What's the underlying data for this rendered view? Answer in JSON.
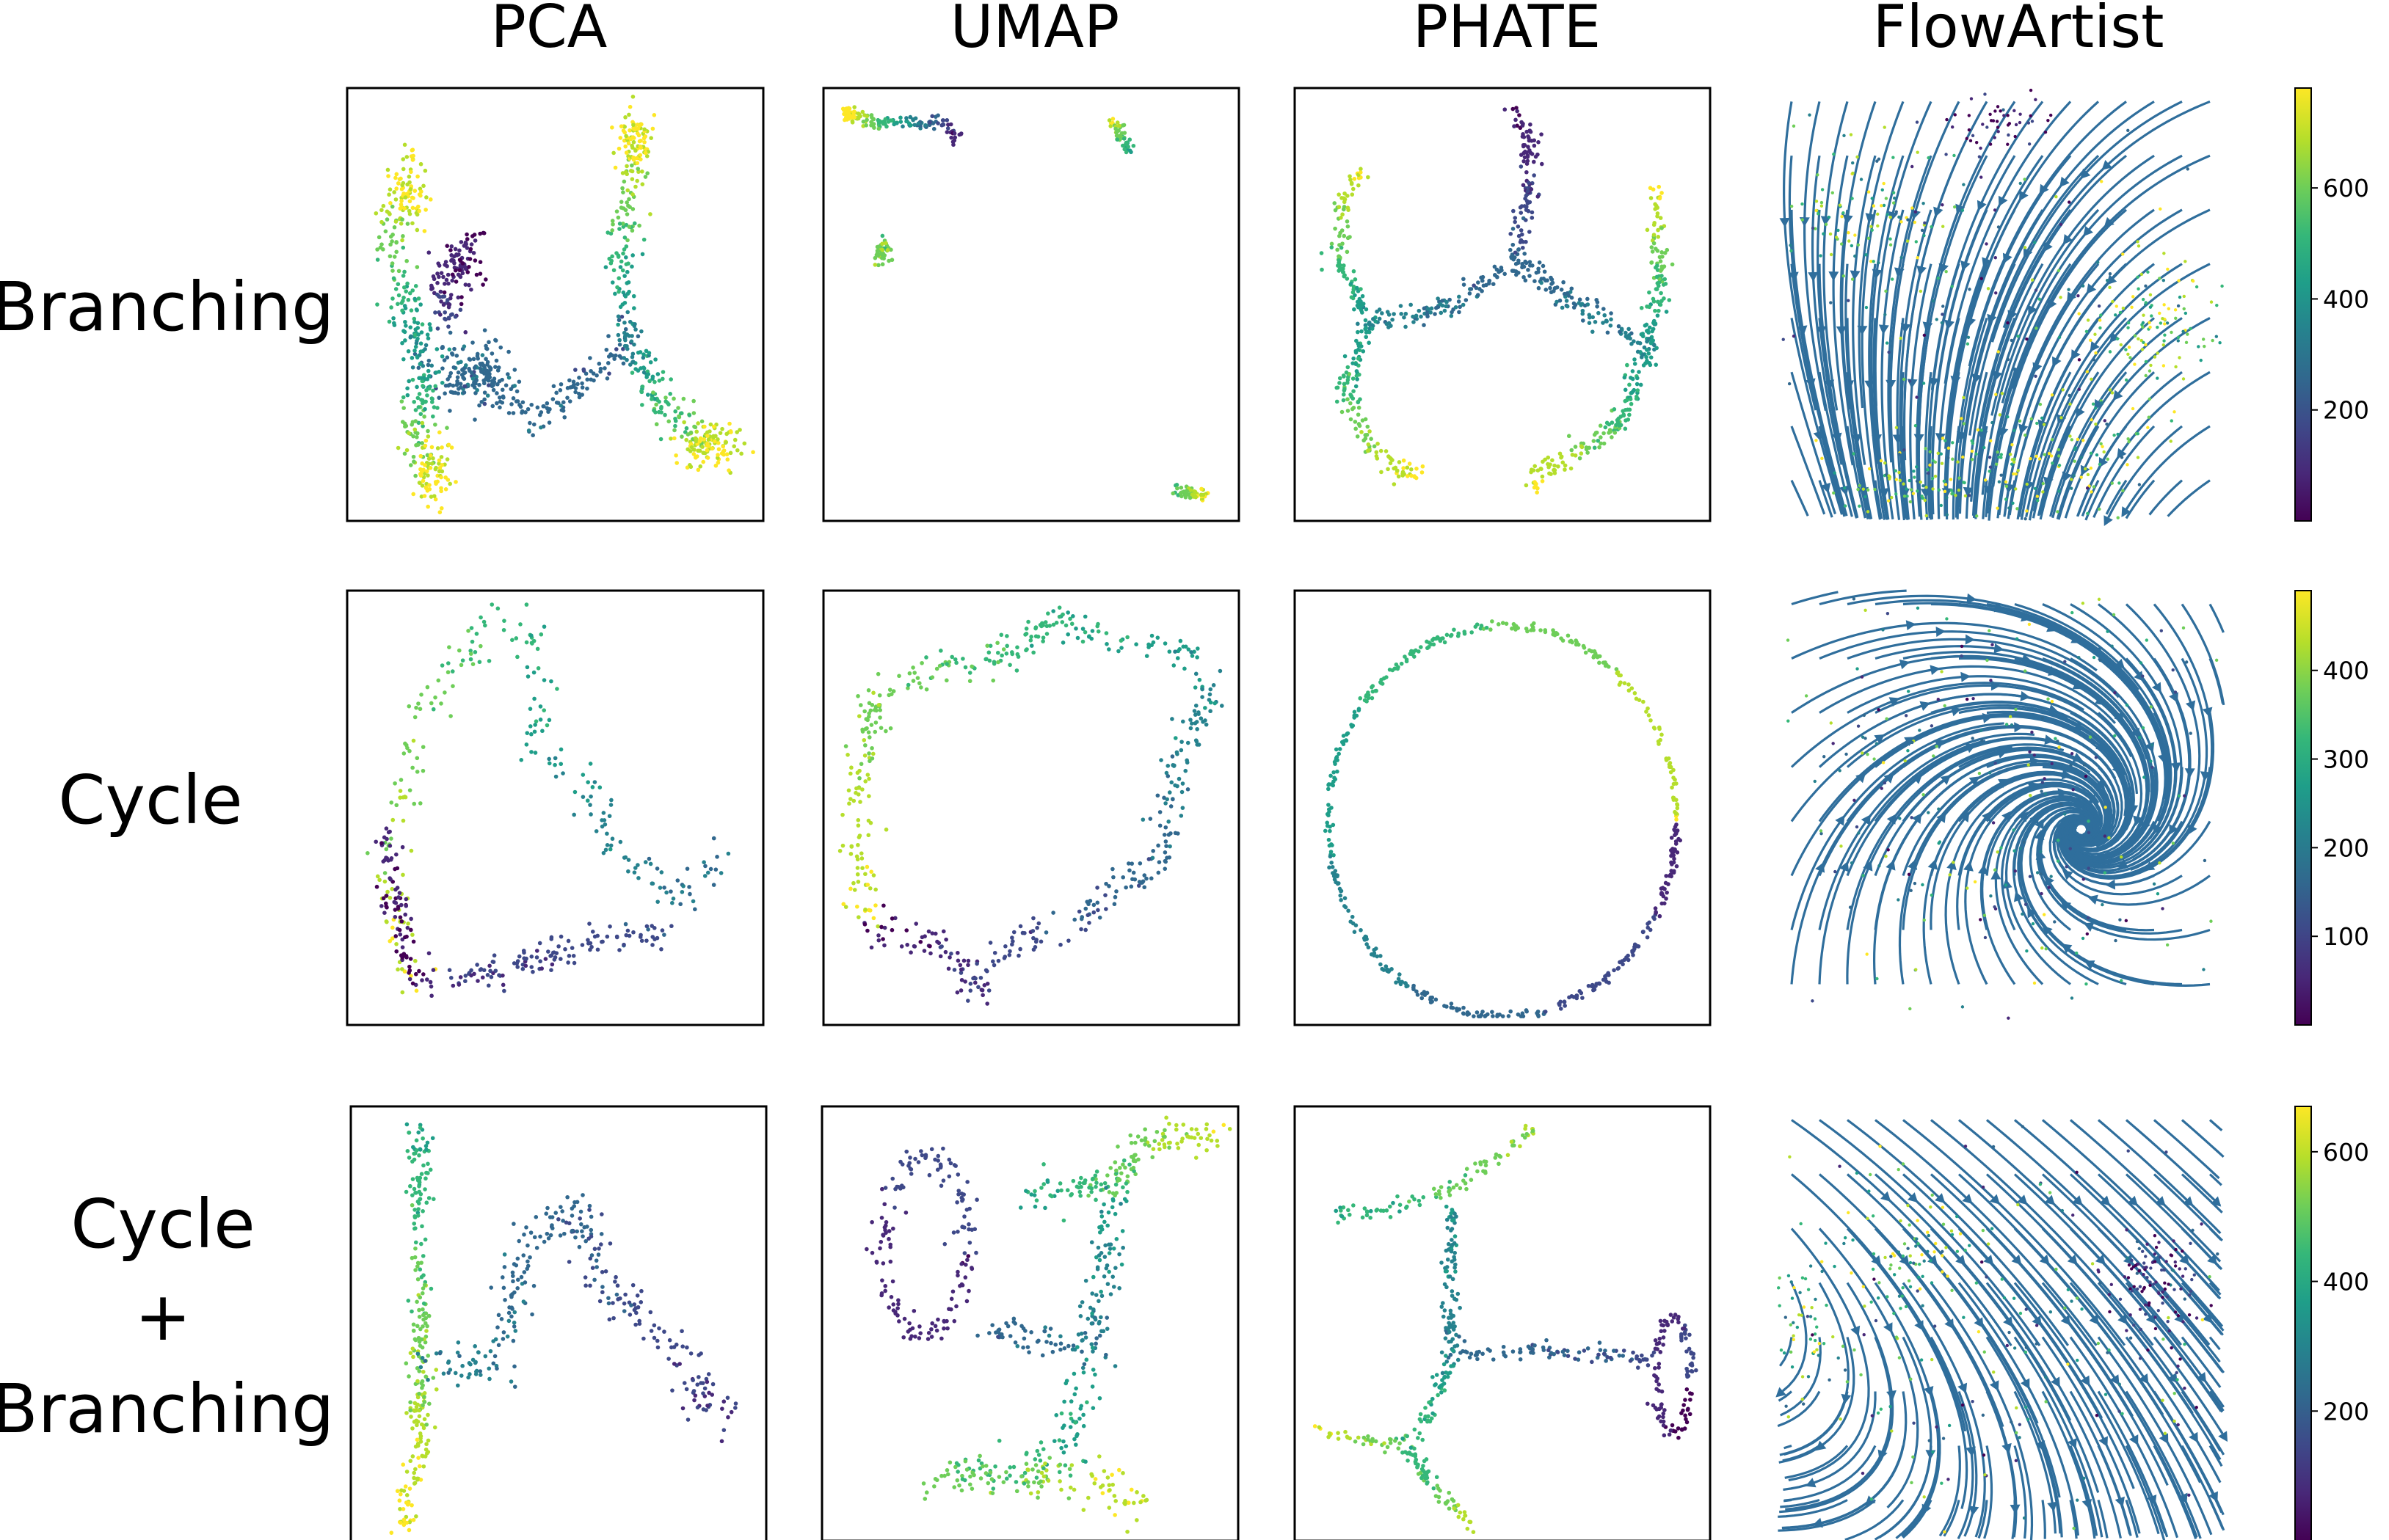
{
  "figure": {
    "columns": [
      "PCA",
      "UMAP",
      "PHATE",
      "FlowArtist"
    ],
    "rows": [
      {
        "label_lines": [
          "Branching"
        ]
      },
      {
        "label_lines": [
          "Cycle"
        ]
      },
      {
        "label_lines": [
          "Cycle",
          "+",
          "Branching"
        ]
      }
    ]
  },
  "colors": {
    "viridis": [
      "#440154",
      "#482878",
      "#3e4989",
      "#31688e",
      "#26828e",
      "#1f9e89",
      "#35b779",
      "#6ece58",
      "#b5de2b",
      "#fde725"
    ],
    "streamline": "#2f6e9c",
    "frame": "#000000"
  },
  "chart_data": [
    {
      "type": "scatter",
      "row": "Branching",
      "method": "PCA",
      "style": "branching_pca"
    },
    {
      "type": "scatter",
      "row": "Branching",
      "method": "UMAP",
      "style": "branching_umap"
    },
    {
      "type": "scatter",
      "row": "Branching",
      "method": "PHATE",
      "style": "branching_phate"
    },
    {
      "type": "scatter",
      "row": "Branching",
      "method": "FlowArtist",
      "style": "flow_branching",
      "colorbar": {
        "range": [
          0,
          780
        ],
        "ticks": [
          200,
          400,
          600
        ],
        "colormap": "viridis"
      }
    },
    {
      "type": "scatter",
      "row": "Cycle",
      "method": "PCA",
      "style": "cycle_pca"
    },
    {
      "type": "scatter",
      "row": "Cycle",
      "method": "UMAP",
      "style": "cycle_umap"
    },
    {
      "type": "scatter",
      "row": "Cycle",
      "method": "PHATE",
      "style": "cycle_phate"
    },
    {
      "type": "scatter",
      "row": "Cycle",
      "method": "FlowArtist",
      "style": "flow_cycle",
      "colorbar": {
        "range": [
          0,
          490
        ],
        "ticks": [
          100,
          200,
          300,
          400
        ],
        "colormap": "viridis"
      }
    },
    {
      "type": "scatter",
      "row": "Cycle + Branching",
      "method": "PCA",
      "style": "cb_pca"
    },
    {
      "type": "scatter",
      "row": "Cycle + Branching",
      "method": "UMAP",
      "style": "cb_umap"
    },
    {
      "type": "scatter",
      "row": "Cycle + Branching",
      "method": "PHATE",
      "style": "cb_phate"
    },
    {
      "type": "scatter",
      "row": "Cycle + Branching",
      "method": "FlowArtist",
      "style": "flow_cb",
      "colorbar": {
        "range": [
          0,
          670
        ],
        "ticks": [
          200,
          400,
          600
        ],
        "colormap": "viridis"
      }
    }
  ]
}
